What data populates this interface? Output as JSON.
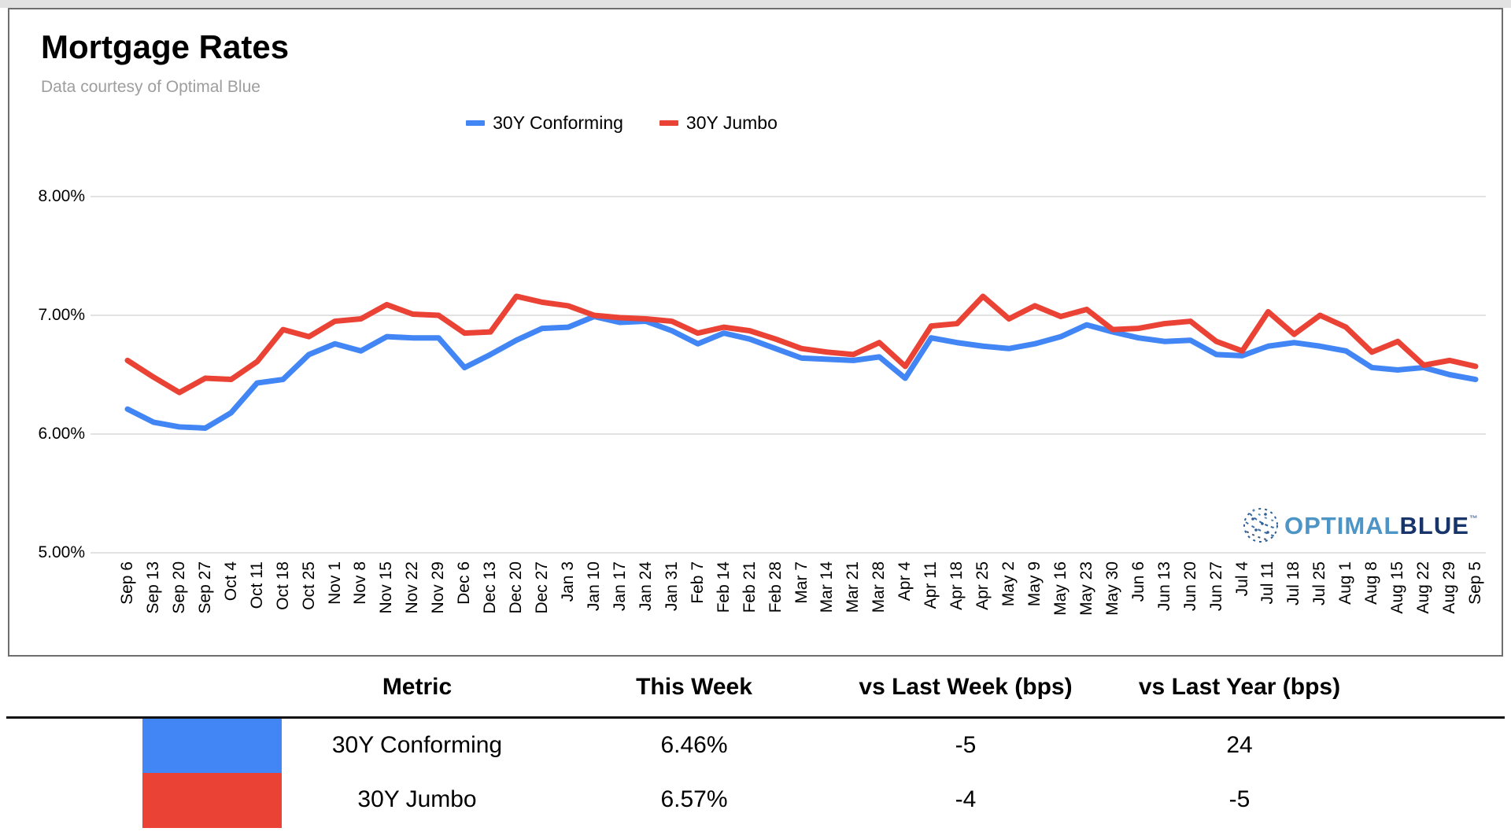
{
  "header": {
    "title": "Mortgage Rates",
    "subtitle": "Data courtesy of Optimal Blue"
  },
  "logo": {
    "icon": "optimal-blue-globe-icon",
    "part1": "OPTIMAL",
    "part2": "BLUE",
    "tm": "™",
    "part1_color": "#4d94c7",
    "part2_color": "#17356b",
    "icon_color": "#2d5e96"
  },
  "chart_data": {
    "type": "line",
    "title": "Mortgage Rates",
    "xlabel": "",
    "ylabel": "",
    "ylim": [
      5.0,
      8.35
    ],
    "grid": true,
    "legend_position": "top-center",
    "gridline_color": "#d9d9d9",
    "y_ticks": [
      {
        "label": "8.00%",
        "value": 8.0
      },
      {
        "label": "7.00%",
        "value": 7.0
      },
      {
        "label": "6.00%",
        "value": 6.0
      },
      {
        "label": "5.00%",
        "value": 5.0
      }
    ],
    "categories": [
      "Sep 6",
      "Sep 13",
      "Sep 20",
      "Sep 27",
      "Oct 4",
      "Oct 11",
      "Oct 18",
      "Oct 25",
      "Nov 1",
      "Nov 8",
      "Nov 15",
      "Nov 22",
      "Nov 29",
      "Dec 6",
      "Dec 13",
      "Dec 20",
      "Dec 27",
      "Jan 3",
      "Jan 10",
      "Jan 17",
      "Jan 24",
      "Jan 31",
      "Feb 7",
      "Feb 14",
      "Feb 21",
      "Feb 28",
      "Mar 7",
      "Mar 14",
      "Mar 21",
      "Mar 28",
      "Apr 4",
      "Apr 11",
      "Apr 18",
      "Apr 25",
      "May 2",
      "May 9",
      "May 16",
      "May 23",
      "May 30",
      "Jun 6",
      "Jun 13",
      "Jun 20",
      "Jun 27",
      "Jul 4",
      "Jul 11",
      "Jul 18",
      "Jul 25",
      "Aug 1",
      "Aug 8",
      "Aug 15",
      "Aug 22",
      "Aug 29",
      "Sep 5"
    ],
    "series": [
      {
        "name": "30Y Conforming",
        "color": "#4285F4",
        "values": [
          6.21,
          6.1,
          6.06,
          6.05,
          6.18,
          6.43,
          6.46,
          6.67,
          6.76,
          6.7,
          6.82,
          6.81,
          6.81,
          6.56,
          6.67,
          6.79,
          6.89,
          6.9,
          6.99,
          6.94,
          6.95,
          6.87,
          6.76,
          6.85,
          6.8,
          6.72,
          6.64,
          6.63,
          6.62,
          6.65,
          6.47,
          6.81,
          6.77,
          6.74,
          6.72,
          6.76,
          6.82,
          6.92,
          6.86,
          6.81,
          6.78,
          6.79,
          6.67,
          6.66,
          6.74,
          6.77,
          6.74,
          6.7,
          6.56,
          6.54,
          6.56,
          6.5,
          6.46
        ]
      },
      {
        "name": "30Y Jumbo",
        "color": "#EA4335",
        "values": [
          6.62,
          6.48,
          6.35,
          6.47,
          6.46,
          6.61,
          6.88,
          6.82,
          6.95,
          6.97,
          7.09,
          7.01,
          7.0,
          6.85,
          6.86,
          7.16,
          7.11,
          7.08,
          7.0,
          6.98,
          6.97,
          6.95,
          6.85,
          6.9,
          6.87,
          6.8,
          6.72,
          6.69,
          6.67,
          6.77,
          6.57,
          6.91,
          6.93,
          7.16,
          6.97,
          7.08,
          6.99,
          7.05,
          6.88,
          6.89,
          6.93,
          6.95,
          6.78,
          6.7,
          7.03,
          6.84,
          7.0,
          6.9,
          6.69,
          6.78,
          6.58,
          6.62,
          6.57
        ]
      }
    ]
  },
  "table": {
    "headers": {
      "metric": "Metric",
      "this_week": "This Week",
      "vs_last_week": "vs Last Week (bps)",
      "vs_last_year": "vs Last Year (bps)"
    },
    "rows": [
      {
        "swatch_color": "#4285F4",
        "metric": "30Y Conforming",
        "this_week": "6.46%",
        "vs_last_week": "-5",
        "vs_last_year": "24"
      },
      {
        "swatch_color": "#EA4335",
        "metric": "30Y Jumbo",
        "this_week": "6.57%",
        "vs_last_week": "-4",
        "vs_last_year": "-5"
      }
    ]
  }
}
